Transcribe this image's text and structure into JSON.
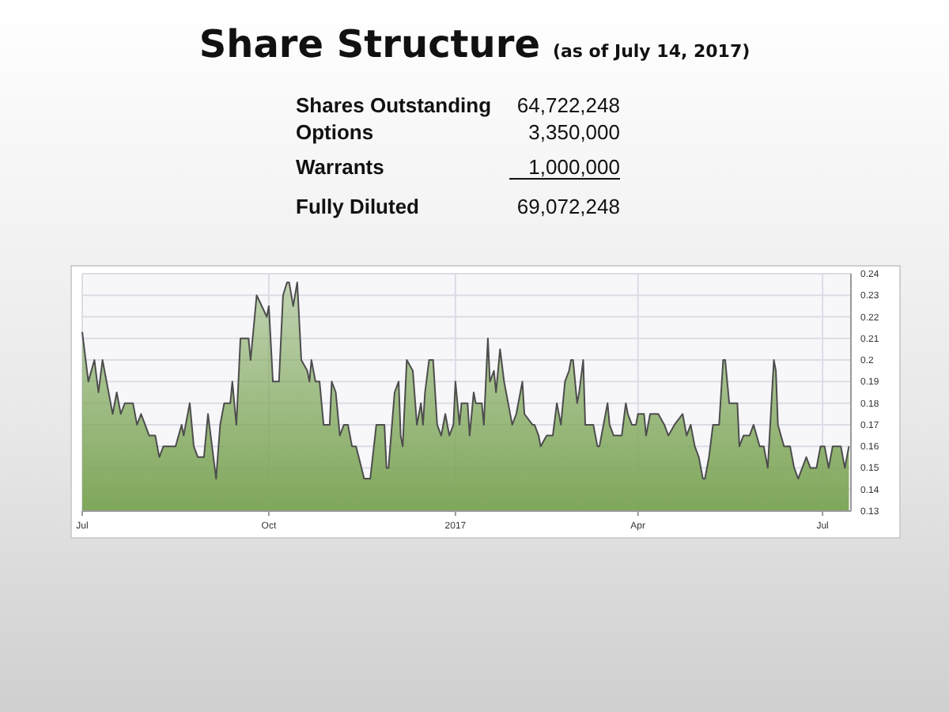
{
  "chart_data": {
    "type": "area",
    "title": "Share Structure",
    "subtitle": "(as of July 14, 2017)",
    "annotations": [
      "Shares Outstanding",
      "64,722,248",
      "Options",
      "3,350,000",
      "Warrants",
      "1,000,000",
      "Fully Diluted",
      "69,072,248"
    ],
    "xlim": [
      "2016-07-01",
      "2017-07-15"
    ],
    "xticks": [
      {
        "value": "2016-07-01",
        "label": "Jul"
      },
      {
        "value": "2016-10-01",
        "label": "Oct"
      },
      {
        "value": "2017-01-01",
        "label": "2017"
      },
      {
        "value": "2017-04-01",
        "label": "Apr"
      },
      {
        "value": "2017-07-01",
        "label": "Jul"
      }
    ],
    "ylim": [
      0.13,
      0.24
    ],
    "yticks": [
      0.13,
      0.14,
      0.15,
      0.16,
      0.17,
      0.18,
      0.19,
      0.2,
      0.21,
      0.22,
      0.23,
      0.24
    ],
    "grid": true,
    "series": [
      {
        "color": "#7fa75a",
        "x": [
          "2016-07-01",
          "2016-07-04",
          "2016-07-07",
          "2016-07-09",
          "2016-07-11",
          "2016-07-13",
          "2016-07-16",
          "2016-07-18",
          "2016-07-20",
          "2016-07-22",
          "2016-07-26",
          "2016-07-28",
          "2016-07-30",
          "2016-08-01",
          "2016-08-03",
          "2016-08-06",
          "2016-08-08",
          "2016-08-10",
          "2016-08-16",
          "2016-08-19",
          "2016-08-20",
          "2016-08-23",
          "2016-08-25",
          "2016-08-27",
          "2016-08-30",
          "2016-09-01",
          "2016-09-05",
          "2016-09-07",
          "2016-09-09",
          "2016-09-12",
          "2016-09-13",
          "2016-09-15",
          "2016-09-17",
          "2016-09-21",
          "2016-09-22",
          "2016-09-25",
          "2016-09-30",
          "2016-10-01",
          "2016-10-03",
          "2016-10-06",
          "2016-10-08",
          "2016-10-10",
          "2016-10-11",
          "2016-10-13",
          "2016-10-15",
          "2016-10-17",
          "2016-10-20",
          "2016-10-21",
          "2016-10-22",
          "2016-10-24",
          "2016-10-26",
          "2016-10-28",
          "2016-10-31",
          "2016-11-01",
          "2016-11-03",
          "2016-11-05",
          "2016-11-07",
          "2016-11-09",
          "2016-11-11",
          "2016-11-13",
          "2016-11-17",
          "2016-11-20",
          "2016-11-23",
          "2016-11-27",
          "2016-11-28",
          "2016-11-29",
          "2016-12-02",
          "2016-12-04",
          "2016-12-05",
          "2016-12-06",
          "2016-12-08",
          "2016-12-11",
          "2016-12-13",
          "2016-12-15",
          "2016-12-16",
          "2016-12-17",
          "2016-12-19",
          "2016-12-21",
          "2016-12-23",
          "2016-12-25",
          "2016-12-27",
          "2016-12-29",
          "2016-12-31",
          "2017-01-01",
          "2017-01-03",
          "2017-01-04",
          "2017-01-07",
          "2017-01-08",
          "2017-01-10",
          "2017-01-11",
          "2017-01-14",
          "2017-01-15",
          "2017-01-17",
          "2017-01-18",
          "2017-01-20",
          "2017-01-21",
          "2017-01-23",
          "2017-01-25",
          "2017-01-27",
          "2017-01-29",
          "2017-01-31",
          "2017-02-03",
          "2017-02-04",
          "2017-02-08",
          "2017-02-09",
          "2017-02-11",
          "2017-02-12",
          "2017-02-15",
          "2017-02-18",
          "2017-02-20",
          "2017-02-22",
          "2017-02-24",
          "2017-02-26",
          "2017-02-27",
          "2017-02-28",
          "2017-03-02",
          "2017-03-03",
          "2017-03-05",
          "2017-03-06",
          "2017-03-10",
          "2017-03-12",
          "2017-03-13",
          "2017-03-15",
          "2017-03-17",
          "2017-03-18",
          "2017-03-20",
          "2017-03-24",
          "2017-03-26",
          "2017-03-27",
          "2017-03-29",
          "2017-03-31",
          "2017-04-01",
          "2017-04-04",
          "2017-04-05",
          "2017-04-07",
          "2017-04-11",
          "2017-04-14",
          "2017-04-16",
          "2017-04-19",
          "2017-04-23",
          "2017-04-25",
          "2017-04-27",
          "2017-04-29",
          "2017-05-01",
          "2017-05-03",
          "2017-05-04",
          "2017-05-06",
          "2017-05-08",
          "2017-05-11",
          "2017-05-13",
          "2017-05-14",
          "2017-05-16",
          "2017-05-20",
          "2017-05-21",
          "2017-05-23",
          "2017-05-26",
          "2017-05-28",
          "2017-05-31",
          "2017-06-02",
          "2017-06-04",
          "2017-06-07",
          "2017-06-08",
          "2017-06-09",
          "2017-06-12",
          "2017-06-15",
          "2017-06-17",
          "2017-06-19",
          "2017-06-21",
          "2017-06-23",
          "2017-06-25",
          "2017-06-28",
          "2017-06-30",
          "2017-07-02",
          "2017-07-04",
          "2017-07-06",
          "2017-07-10",
          "2017-07-12",
          "2017-07-14"
        ],
        "values": [
          0.213,
          0.19,
          0.2,
          0.185,
          0.2,
          0.19,
          0.175,
          0.185,
          0.175,
          0.18,
          0.18,
          0.17,
          0.175,
          0.17,
          0.165,
          0.165,
          0.155,
          0.16,
          0.16,
          0.17,
          0.165,
          0.18,
          0.16,
          0.155,
          0.155,
          0.175,
          0.145,
          0.17,
          0.18,
          0.18,
          0.19,
          0.17,
          0.21,
          0.21,
          0.2,
          0.23,
          0.22,
          0.225,
          0.19,
          0.19,
          0.23,
          0.236,
          0.236,
          0.225,
          0.236,
          0.2,
          0.195,
          0.19,
          0.2,
          0.19,
          0.19,
          0.17,
          0.17,
          0.19,
          0.185,
          0.165,
          0.17,
          0.17,
          0.16,
          0.16,
          0.145,
          0.145,
          0.17,
          0.17,
          0.15,
          0.15,
          0.185,
          0.19,
          0.165,
          0.16,
          0.2,
          0.195,
          0.17,
          0.18,
          0.17,
          0.185,
          0.2,
          0.2,
          0.17,
          0.165,
          0.175,
          0.165,
          0.17,
          0.19,
          0.17,
          0.18,
          0.18,
          0.165,
          0.185,
          0.18,
          0.18,
          0.17,
          0.21,
          0.19,
          0.195,
          0.185,
          0.205,
          0.19,
          0.18,
          0.17,
          0.175,
          0.19,
          0.175,
          0.17,
          0.17,
          0.165,
          0.16,
          0.165,
          0.165,
          0.18,
          0.17,
          0.19,
          0.195,
          0.2,
          0.2,
          0.18,
          0.185,
          0.2,
          0.17,
          0.17,
          0.16,
          0.16,
          0.17,
          0.18,
          0.17,
          0.165,
          0.165,
          0.18,
          0.175,
          0.17,
          0.17,
          0.175,
          0.175,
          0.165,
          0.175,
          0.175,
          0.17,
          0.165,
          0.17,
          0.175,
          0.165,
          0.17,
          0.16,
          0.155,
          0.145,
          0.145,
          0.155,
          0.17,
          0.17,
          0.2,
          0.2,
          0.18,
          0.18,
          0.16,
          0.165,
          0.165,
          0.17,
          0.16,
          0.16,
          0.15,
          0.2,
          0.195,
          0.17,
          0.16,
          0.16,
          0.15,
          0.145,
          0.15,
          0.155,
          0.15,
          0.15,
          0.16,
          0.16,
          0.15,
          0.16,
          0.16,
          0.15,
          0.16
        ]
      }
    ]
  }
}
